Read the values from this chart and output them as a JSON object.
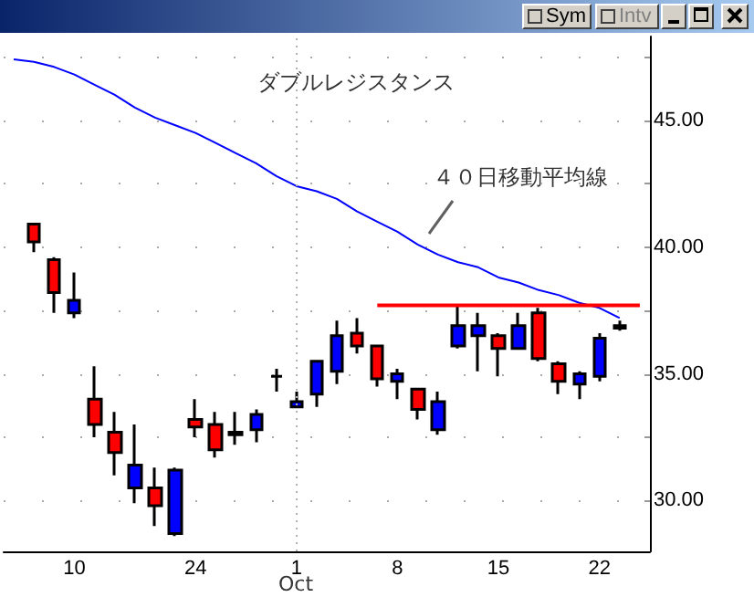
{
  "chart_data": {
    "type": "candlestick",
    "annotations": [
      "ダブルレジスタンス",
      "４０日移動平均線",
      "Oct",
      "Sym",
      "Intv"
    ],
    "categories": [
      null,
      null,
      null,
      "10",
      null,
      null,
      null,
      null,
      null,
      "24",
      null,
      null,
      null,
      null,
      "1",
      null,
      null,
      null,
      null,
      "8",
      null,
      null,
      null,
      null,
      "15",
      null,
      null,
      null,
      null,
      "22",
      null,
      null
    ],
    "series": [
      {
        "colors": [
          null,
          "#ff0000",
          "#ff0000",
          "#0000ff",
          "#ff0000",
          "#ff0000",
          "#0000ff",
          "#ff0000",
          "#0000ff",
          "#ff0000",
          "#ff0000",
          "#ff0000",
          "#0000ff",
          "#000000",
          "#0000ff",
          "#0000ff",
          "#0000ff",
          "#ff0000",
          "#ff0000",
          "#0000ff",
          "#ff0000",
          "#0000ff",
          "#0000ff",
          "#0000ff",
          "#ff0000",
          "#0000ff",
          "#ff0000",
          "#ff0000",
          "#0000ff",
          "#0000ff",
          "#000000",
          null
        ],
        "ohlc": [
          null,
          [
            40.9,
            40.9,
            39.8,
            40.2
          ],
          [
            39.5,
            39.6,
            37.4,
            38.2
          ],
          [
            37.4,
            39.0,
            37.2,
            37.9
          ],
          [
            34.0,
            35.3,
            32.5,
            33.0
          ],
          [
            32.7,
            33.5,
            31.0,
            31.9
          ],
          [
            30.5,
            33.0,
            29.9,
            31.4
          ],
          [
            30.5,
            31.3,
            29.0,
            29.8
          ],
          [
            28.7,
            31.3,
            28.6,
            31.2
          ],
          [
            33.2,
            34.0,
            32.5,
            32.9
          ],
          [
            33.0,
            33.5,
            31.7,
            32.0
          ],
          [
            32.7,
            33.5,
            32.2,
            32.6
          ],
          [
            32.8,
            33.6,
            32.3,
            33.4
          ],
          [
            34.9,
            35.2,
            34.3,
            34.9
          ],
          [
            33.7,
            34.3,
            33.7,
            33.9
          ],
          [
            34.2,
            35.5,
            33.7,
            35.5
          ],
          [
            35.1,
            37.1,
            34.6,
            36.5
          ],
          [
            36.6,
            37.2,
            35.8,
            36.1
          ],
          [
            36.1,
            36.1,
            34.5,
            34.8
          ],
          [
            34.7,
            35.2,
            34.0,
            35.0
          ],
          [
            34.4,
            34.4,
            33.2,
            33.6
          ],
          [
            32.8,
            34.3,
            32.6,
            33.9
          ],
          [
            36.1,
            37.7,
            36.0,
            36.9
          ],
          [
            36.5,
            37.4,
            35.1,
            36.9
          ],
          [
            36.5,
            36.6,
            34.9,
            36.0
          ],
          [
            36.0,
            37.4,
            36.0,
            36.9
          ],
          [
            37.4,
            37.6,
            35.5,
            35.6
          ],
          [
            35.4,
            35.5,
            34.2,
            34.7
          ],
          [
            34.6,
            35.1,
            34.0,
            35.0
          ],
          [
            34.9,
            36.6,
            34.7,
            36.4
          ],
          [
            36.9,
            37.1,
            36.7,
            36.8
          ],
          null
        ]
      },
      {
        "type": "line",
        "color": "#0000ff",
        "values": [
          47.4,
          47.3,
          47.1,
          46.8,
          46.4,
          46.0,
          45.5,
          45.1,
          44.8,
          44.5,
          44.1,
          43.7,
          43.3,
          42.8,
          42.4,
          42.2,
          41.9,
          41.4,
          41.0,
          40.6,
          40.1,
          39.7,
          39.4,
          39.2,
          38.8,
          38.6,
          38.3,
          38.1,
          37.8,
          37.6,
          37.2,
          null
        ]
      },
      {
        "type": "line",
        "color": "#ff0000",
        "values": [
          null,
          null,
          null,
          null,
          null,
          null,
          null,
          null,
          null,
          null,
          null,
          null,
          null,
          null,
          null,
          null,
          null,
          null,
          37.7,
          37.7,
          37.7,
          37.7,
          37.7,
          37.7,
          37.7,
          37.7,
          37.7,
          37.7,
          37.7,
          37.7,
          37.7,
          37.7
        ]
      }
    ],
    "ylim": [
      28,
      48.3
    ],
    "yticks": [
      {
        "value": 30,
        "label": "30.00"
      },
      {
        "value": 32.5,
        "label": null
      },
      {
        "value": 35,
        "label": "35.00"
      },
      {
        "value": 37.5,
        "label": null
      },
      {
        "value": 40,
        "label": "40.00"
      },
      {
        "value": 42.5,
        "label": null
      },
      {
        "value": 45,
        "label": "45.00"
      },
      {
        "value": 47.5,
        "label": null
      }
    ],
    "ref_lines": [
      {
        "axis": "x",
        "value": "1",
        "color": "#b0b0b0",
        "line_style": "dotted"
      }
    ],
    "grid": "y"
  }
}
